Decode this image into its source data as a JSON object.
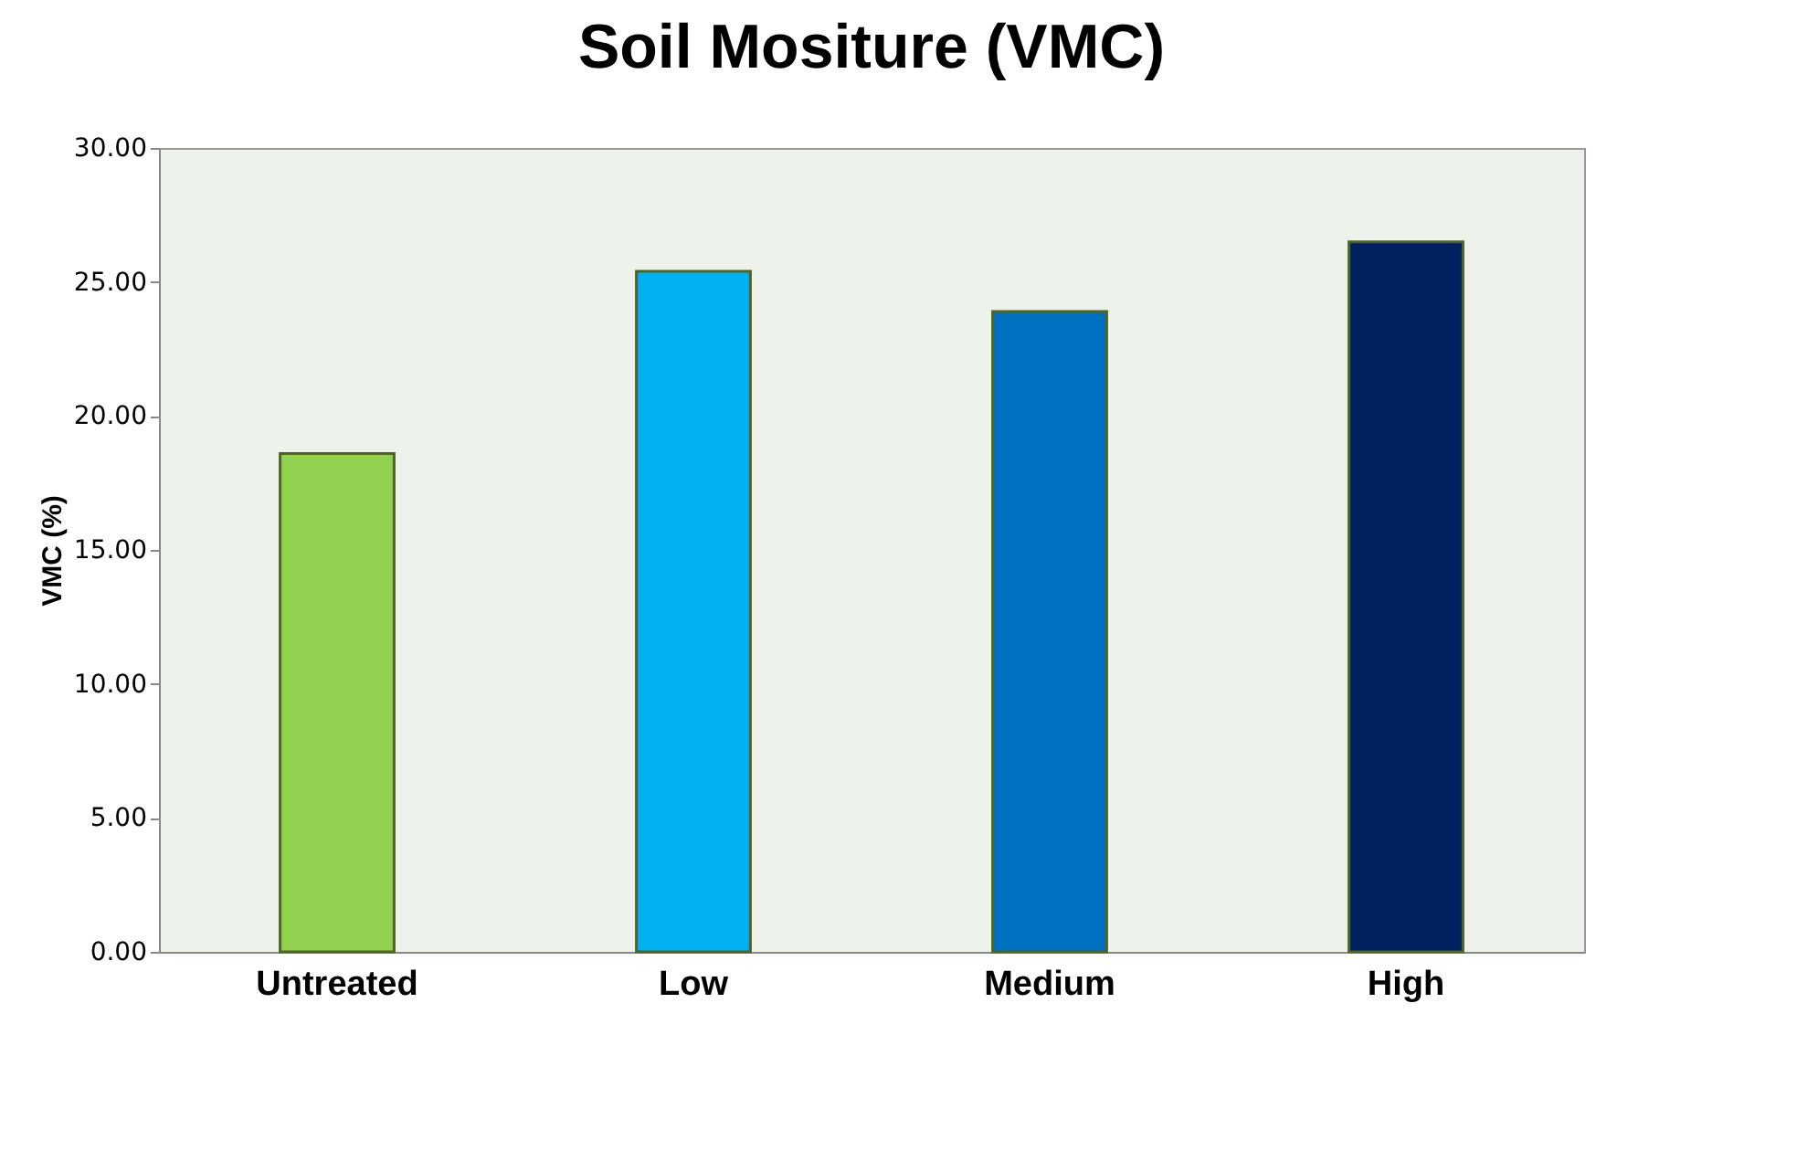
{
  "chart_data": {
    "type": "bar",
    "title": "Soil Mositure (VMC)",
    "ylabel": "VMC (%)",
    "categories": [
      "Untreated",
      "Low",
      "Medium",
      "High"
    ],
    "values": [
      18.6,
      25.4,
      23.9,
      26.5
    ],
    "colors": [
      "#92d050",
      "#00b0f0",
      "#0070c0",
      "#002060"
    ],
    "ylim": [
      0,
      30
    ],
    "yticks": [
      {
        "value": 0,
        "label": "0.00"
      },
      {
        "value": 5,
        "label": "5.00"
      },
      {
        "value": 10,
        "label": "10.00"
      },
      {
        "value": 15,
        "label": "15.00"
      },
      {
        "value": 20,
        "label": "20.00"
      },
      {
        "value": 25,
        "label": "25.00"
      },
      {
        "value": 30,
        "label": "30.00"
      }
    ],
    "grid": false
  }
}
